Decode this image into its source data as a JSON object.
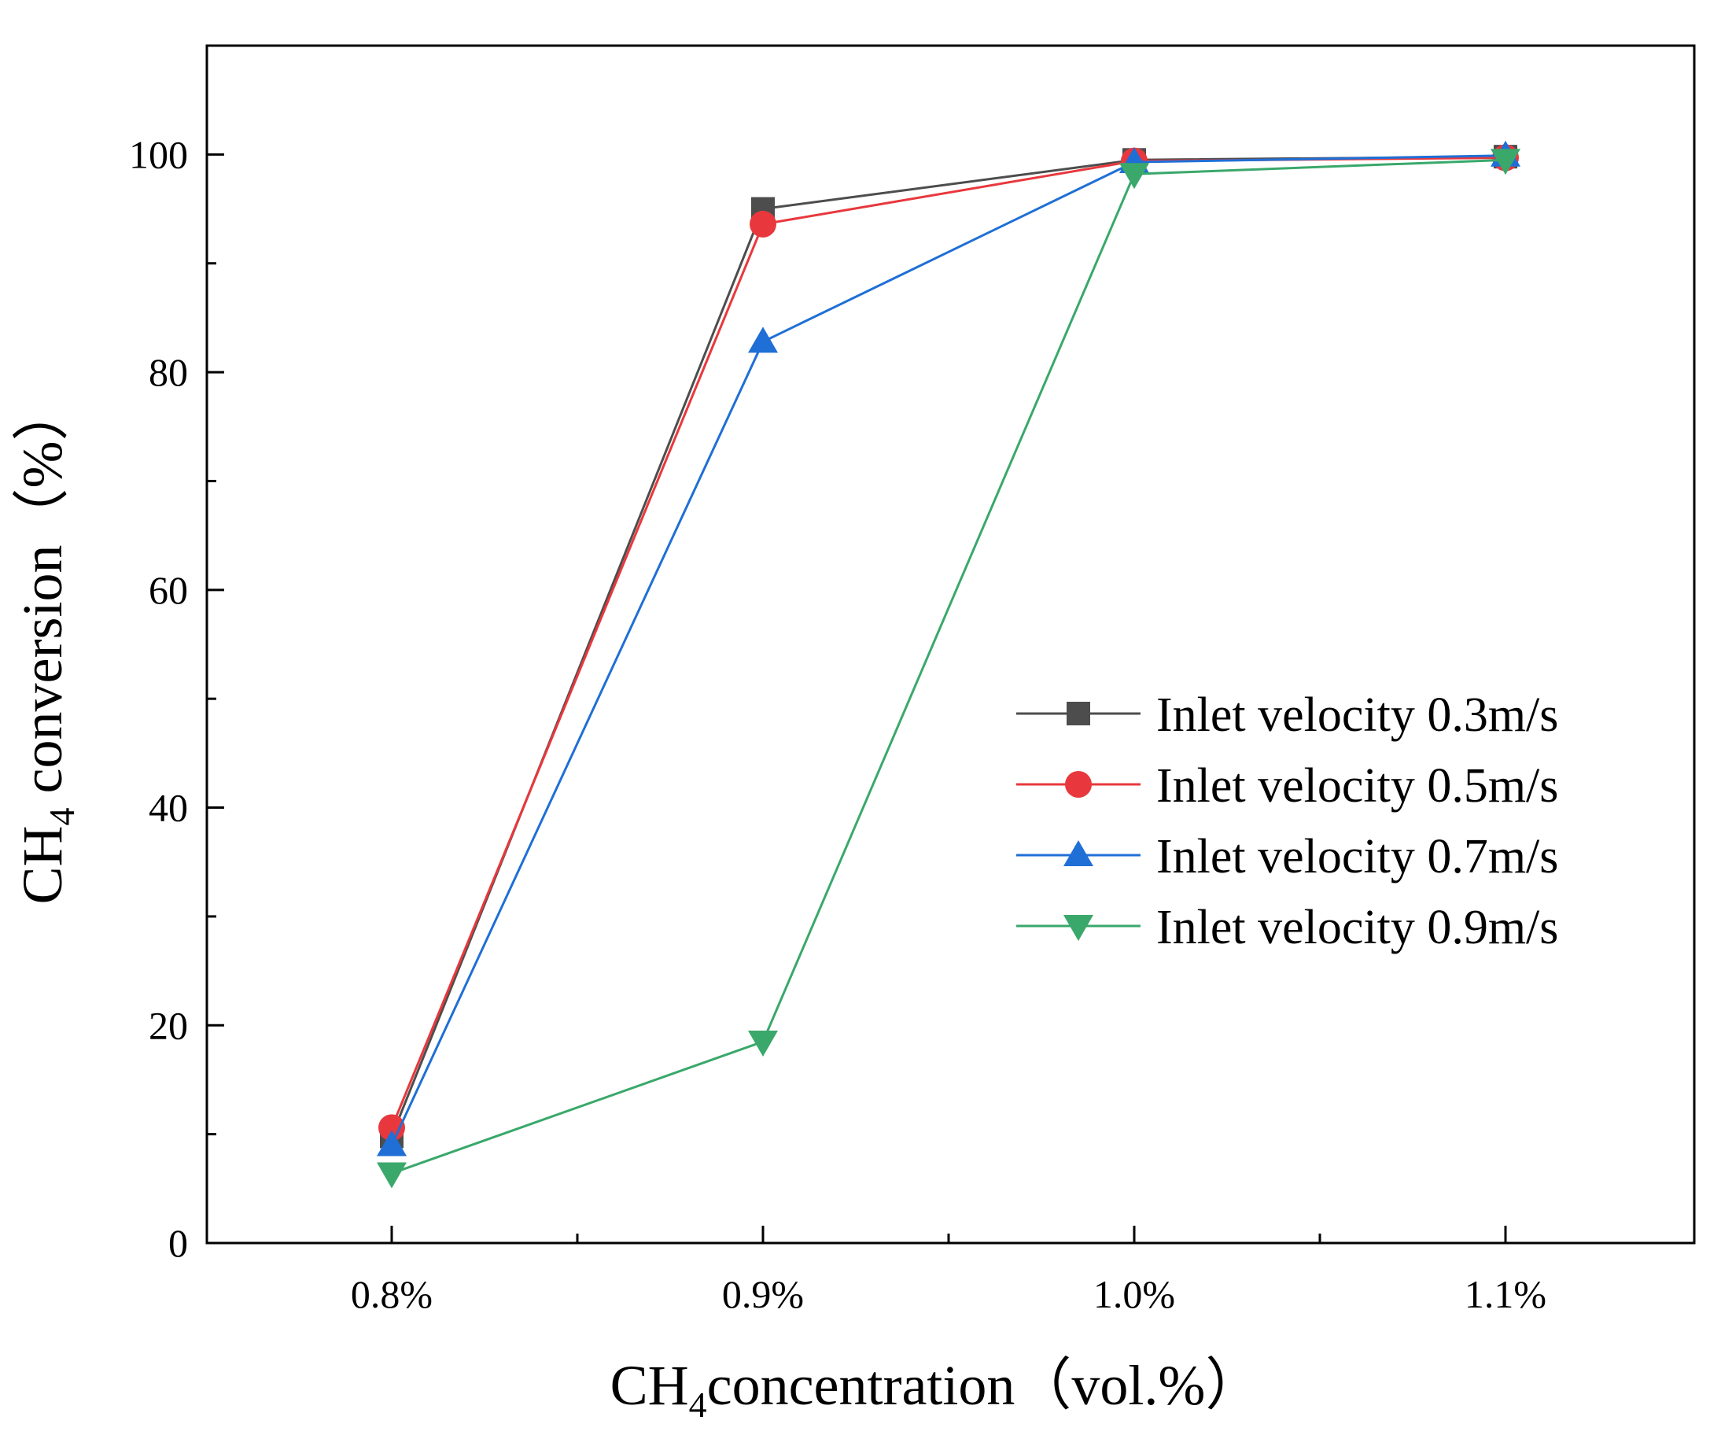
{
  "chart_data": {
    "type": "line",
    "categories": [
      "0.8%",
      "0.9%",
      "1.0%",
      "1.1%"
    ],
    "ylim": [
      0,
      110
    ],
    "yticks": [
      0,
      20,
      40,
      60,
      80,
      100
    ],
    "ylabel": {
      "base": "CH",
      "sub": "4",
      "rest": " conversion（%）"
    },
    "xlabel": {
      "base": "CH",
      "sub": "4",
      "rest": "concentration（vol.%）"
    },
    "legend_position": "center-right",
    "series": [
      {
        "name": "Inlet velocity 0.3m/s",
        "color": "#4d4d4d",
        "marker": "square",
        "values": [
          9.8,
          95.0,
          99.5,
          99.8
        ]
      },
      {
        "name": "Inlet velocity 0.5m/s",
        "color": "#e8383d",
        "marker": "circle",
        "values": [
          10.6,
          93.6,
          99.4,
          99.7
        ]
      },
      {
        "name": "Inlet velocity 0.7m/s",
        "color": "#1f6fd6",
        "marker": "triangle-up",
        "values": [
          9.0,
          82.8,
          99.3,
          99.9
        ]
      },
      {
        "name": "Inlet velocity 0.9m/s",
        "color": "#3aa86b",
        "marker": "triangle-down",
        "values": [
          6.4,
          18.5,
          98.2,
          99.5
        ]
      }
    ]
  }
}
